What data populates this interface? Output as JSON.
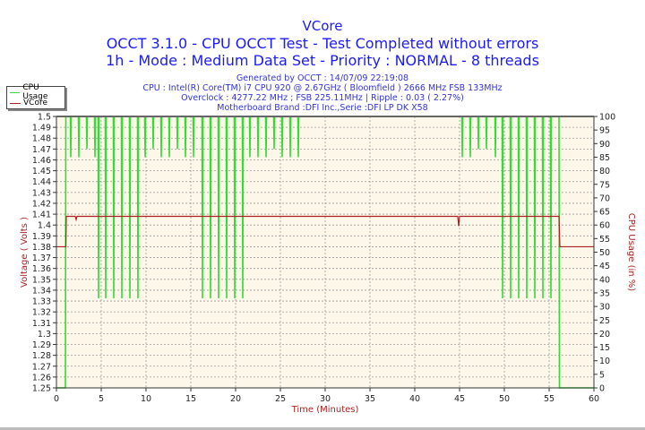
{
  "chart_data": {
    "type": "line",
    "title": "VCore",
    "subtitle_lines": [
      "OCCT 3.1.0 - CPU OCCT Test - Test Completed without errors",
      "1h - Mode : Medium Data Set - Priority : NORMAL - 8 threads"
    ],
    "info_lines": [
      "Generated by OCCT : 14/07/09 22:19:08",
      "CPU : Intel(R) Core(TM) i7 CPU 920 @ 2.67GHz ( Bloomfield ) 2666 MHz FSB 133MHz",
      "Overclock : 4277.22 MHz ; FSB 225.11MHz | Ripple : 0.03 ( 2.27%)",
      "Motherboard Brand :DFI Inc.,Serie :DFI LP DK X58"
    ],
    "xlabel": "Time (Minutes)",
    "ylabel": "Voltage ( Volts )",
    "y2label": "CPU Usage (in %)",
    "xlim": [
      0,
      60
    ],
    "ylim": [
      1.25,
      1.5
    ],
    "y2lim": [
      0,
      100
    ],
    "x_ticks": [
      0,
      5,
      10,
      15,
      20,
      25,
      30,
      35,
      40,
      45,
      50,
      55,
      60
    ],
    "y_ticks": [
      "1.25",
      "1.26",
      "1.27",
      "1.28",
      "1.29",
      "1.3",
      "1.31",
      "1.32",
      "1.33",
      "1.34",
      "1.35",
      "1.36",
      "1.37",
      "1.38",
      "1.39",
      "1.4",
      "1.41",
      "1.42",
      "1.43",
      "1.44",
      "1.45",
      "1.46",
      "1.47",
      "1.48",
      "1.49",
      "1.5"
    ],
    "y2_ticks": [
      0,
      5,
      10,
      15,
      20,
      25,
      30,
      35,
      40,
      45,
      50,
      55,
      60,
      65,
      70,
      75,
      80,
      85,
      90,
      95,
      100
    ],
    "grid": true,
    "legend_position": "top-left",
    "series": [
      {
        "name": "CPU Usage",
        "axis": "right",
        "color": "#33dd33",
        "start": {
          "zero_until": 1.0
        },
        "end": {
          "drop_at": 56.1
        },
        "dips": [
          [
            1.6,
            85
          ],
          [
            2.5,
            85
          ],
          [
            3.4,
            88
          ],
          [
            4.3,
            85
          ],
          [
            4.7,
            33
          ],
          [
            5.5,
            33
          ],
          [
            6.4,
            33
          ],
          [
            7.3,
            33
          ],
          [
            8.2,
            33
          ],
          [
            9.1,
            33
          ],
          [
            9.9,
            85
          ],
          [
            10.8,
            88
          ],
          [
            11.7,
            85
          ],
          [
            12.6,
            85
          ],
          [
            13.5,
            88
          ],
          [
            14.4,
            85
          ],
          [
            15.3,
            85
          ],
          [
            16.3,
            33
          ],
          [
            17.2,
            33
          ],
          [
            18.1,
            33
          ],
          [
            19.0,
            33
          ],
          [
            19.9,
            33
          ],
          [
            20.8,
            33
          ],
          [
            21.6,
            85
          ],
          [
            22.5,
            85
          ],
          [
            23.4,
            85
          ],
          [
            24.3,
            88
          ],
          [
            25.2,
            85
          ],
          [
            26.1,
            85
          ],
          [
            27.0,
            85
          ],
          [
            45.3,
            85
          ],
          [
            46.2,
            85
          ],
          [
            47.1,
            88
          ],
          [
            48.0,
            88
          ],
          [
            49.0,
            85
          ],
          [
            49.8,
            33
          ],
          [
            50.7,
            33
          ],
          [
            51.6,
            33
          ],
          [
            52.5,
            33
          ],
          [
            53.4,
            33
          ],
          [
            54.3,
            33
          ],
          [
            55.2,
            33
          ]
        ]
      },
      {
        "name": "VCore",
        "axis": "left",
        "color": "#aa2222",
        "points": [
          [
            0,
            1.38
          ],
          [
            1.05,
            1.38
          ],
          [
            1.1,
            1.408
          ],
          [
            2.1,
            1.408
          ],
          [
            2.2,
            1.405
          ],
          [
            2.3,
            1.408
          ],
          [
            44.8,
            1.408
          ],
          [
            44.9,
            1.399
          ],
          [
            45.0,
            1.408
          ],
          [
            56.1,
            1.408
          ],
          [
            56.2,
            1.38
          ],
          [
            60,
            1.38
          ]
        ]
      }
    ]
  }
}
